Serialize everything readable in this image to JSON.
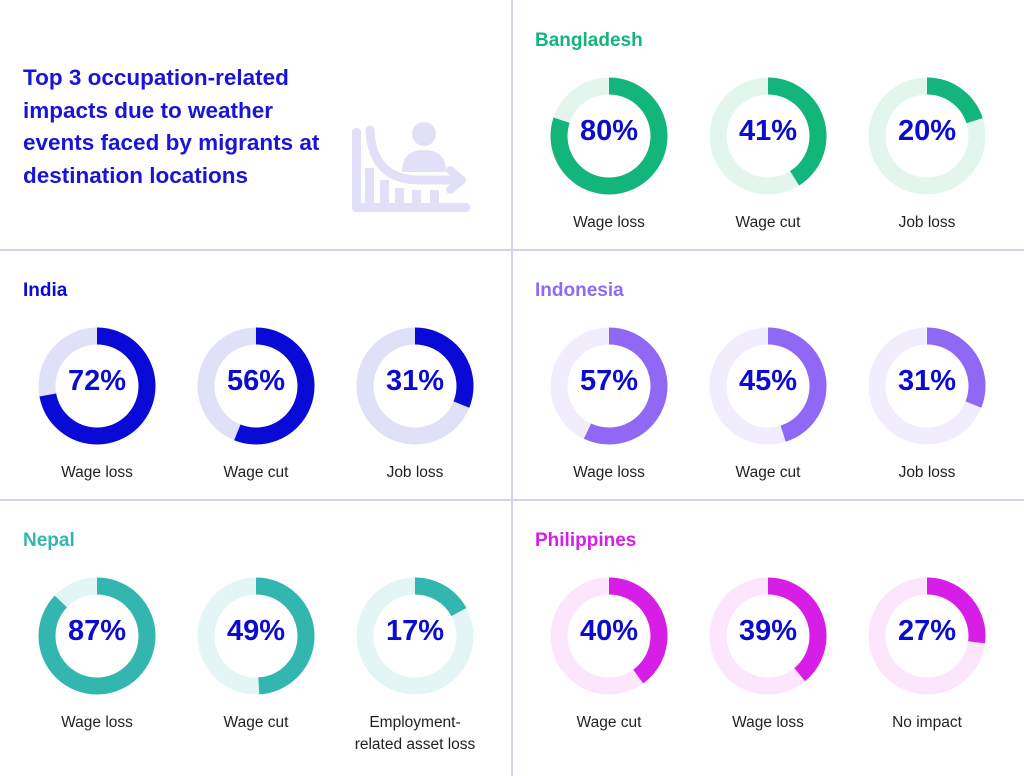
{
  "title": "Top 3 occupation-related impacts due to weather events faced by migrants at destination locations",
  "icon": "declining-chart-person-icon",
  "chart_data": [
    {
      "type": "pie",
      "country": "Bangladesh",
      "color": "#13b57b",
      "track": "#e2f6ee",
      "items": [
        {
          "label": "Wage loss",
          "value": 80,
          "text": "80%"
        },
        {
          "label": "Wage cut",
          "value": 41,
          "text": "41%"
        },
        {
          "label": "Job loss",
          "value": 20,
          "text": "20%"
        }
      ]
    },
    {
      "type": "pie",
      "country": "India",
      "color": "#0a0ad6",
      "track": "#e0e0f8",
      "items": [
        {
          "label": "Wage loss",
          "value": 72,
          "text": "72%"
        },
        {
          "label": "Wage cut",
          "value": 56,
          "text": "56%"
        },
        {
          "label": "Job loss",
          "value": 31,
          "text": "31%"
        }
      ]
    },
    {
      "type": "pie",
      "country": "Indonesia",
      "color": "#9068f6",
      "track": "#f1edfd",
      "items": [
        {
          "label": "Wage loss",
          "value": 57,
          "text": "57%"
        },
        {
          "label": "Wage cut",
          "value": 45,
          "text": "45%"
        },
        {
          "label": "Job loss",
          "value": 31,
          "text": "31%"
        }
      ]
    },
    {
      "type": "pie",
      "country": "Nepal",
      "color": "#33b5b0",
      "track": "#e3f5f4",
      "items": [
        {
          "label": "Wage loss",
          "value": 87,
          "text": "87%"
        },
        {
          "label": "Wage cut",
          "value": 49,
          "text": "49%"
        },
        {
          "label": "Employment-related asset loss",
          "value": 17,
          "text": "17%"
        }
      ]
    },
    {
      "type": "pie",
      "country": "Philippines",
      "color": "#d61ee6",
      "track": "#fbe6fb",
      "items": [
        {
          "label": "Wage cut",
          "value": 40,
          "text": "40%"
        },
        {
          "label": "Wage loss",
          "value": 39,
          "text": "39%"
        },
        {
          "label": "No impact",
          "value": 27,
          "text": "27%"
        }
      ]
    }
  ]
}
